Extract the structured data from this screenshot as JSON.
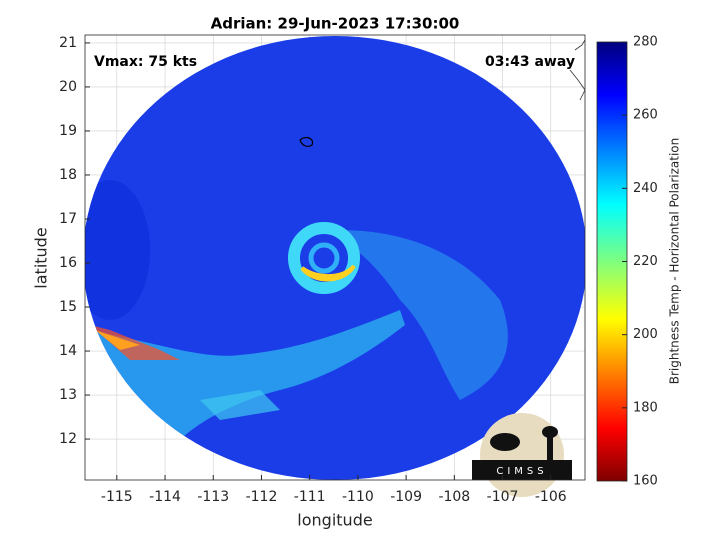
{
  "chart_data": {
    "type": "map",
    "title": "Adrian: 29-Jun-2023 17:30:00",
    "annotations": [
      "Vmax: 75 kts",
      "03:43 away"
    ],
    "x_label": "longitude",
    "y_label": "latitude",
    "xlim": [
      -115.66,
      -105.29
    ],
    "ylim": [
      11.07,
      21.18
    ],
    "xticks": [
      -115,
      -114,
      -113,
      -112,
      -111,
      -110,
      -109,
      -108,
      -107,
      -106
    ],
    "yticks": [
      12,
      13,
      14,
      15,
      16,
      17,
      18,
      19,
      20,
      21
    ],
    "grid": true,
    "colorbar": {
      "label": "Brightness Temp - Horizontal Polarization",
      "lim": [
        160,
        280
      ],
      "ticks": [
        160,
        180,
        200,
        220,
        240,
        260,
        280
      ]
    },
    "logo": "CIMSS"
  }
}
